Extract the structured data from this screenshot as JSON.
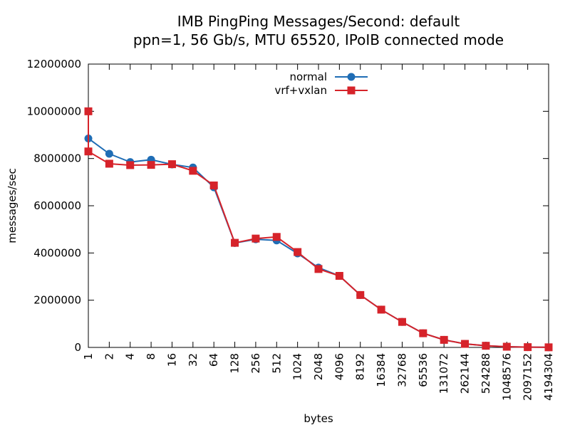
{
  "chart_data": {
    "type": "line",
    "title": "IMB PingPing Messages/Second: default",
    "subtitle": "ppn=1, 56 Gb/s, MTU 65520, IPoIB connected mode",
    "xlabel": "bytes",
    "ylabel": "messages/sec",
    "x_scale": "log2",
    "categories": [
      "1",
      "2",
      "4",
      "8",
      "16",
      "32",
      "64",
      "128",
      "256",
      "512",
      "1024",
      "2048",
      "4096",
      "8192",
      "16384",
      "32768",
      "65536",
      "131072",
      "262144",
      "524288",
      "1048576",
      "2097152",
      "4194304"
    ],
    "y_ticks": [
      "0",
      "2000000",
      "4000000",
      "6000000",
      "8000000",
      "10000000",
      "12000000"
    ],
    "ylim": [
      0,
      12000000
    ],
    "grid": false,
    "legend_position": "top-center",
    "series": [
      {
        "name": "normal",
        "color": "#1f6db5",
        "marker": "circle",
        "first_point_spike": 10000000,
        "values": [
          8850000,
          8200000,
          7850000,
          7950000,
          7750000,
          7620000,
          6780000,
          4420000,
          4580000,
          4530000,
          3980000,
          3380000,
          3030000,
          2220000,
          1600000,
          1080000,
          600000,
          320000,
          150000,
          70000,
          30000,
          12000,
          5000
        ]
      },
      {
        "name": "vrf+vxlan",
        "color": "#d6232a",
        "marker": "square",
        "first_point_spike": 10000000,
        "values": [
          8300000,
          7780000,
          7720000,
          7730000,
          7760000,
          7480000,
          6860000,
          4430000,
          4610000,
          4680000,
          4040000,
          3320000,
          3030000,
          2220000,
          1600000,
          1080000,
          600000,
          320000,
          150000,
          70000,
          30000,
          12000,
          5000
        ]
      }
    ]
  }
}
